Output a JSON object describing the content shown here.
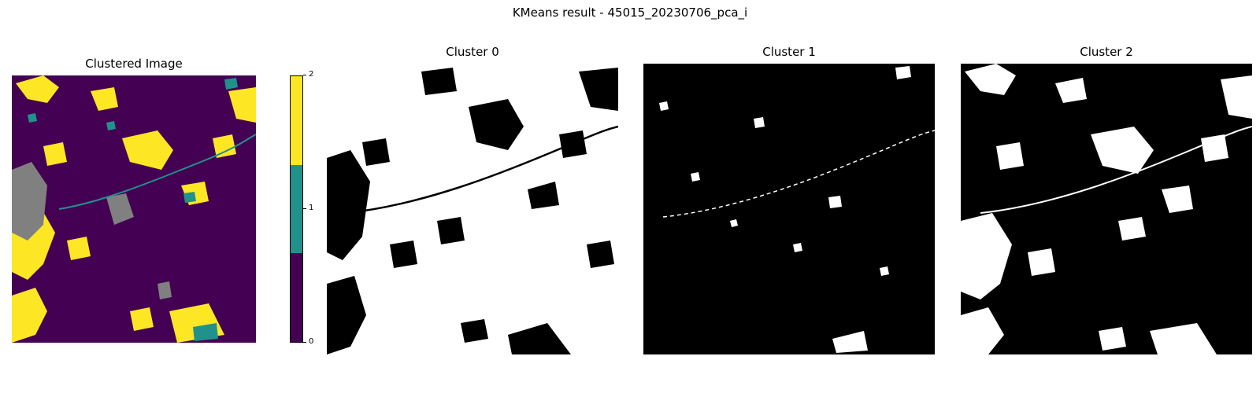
{
  "figure": {
    "suptitle": "KMeans result - 45015_20230706_pca_i"
  },
  "panels": [
    {
      "id": "clustered",
      "title": "Clustered Image"
    },
    {
      "id": "cluster0",
      "title": "Cluster 0"
    },
    {
      "id": "cluster1",
      "title": "Cluster 1"
    },
    {
      "id": "cluster2",
      "title": "Cluster 2"
    }
  ],
  "colorbar": {
    "ticks": [
      "0",
      "1",
      "2"
    ],
    "colors": [
      "#440154",
      "#21918c",
      "#fde725"
    ]
  },
  "palette": {
    "cluster0": "#440154",
    "cluster1": "#21918c",
    "cluster2": "#fde725",
    "nodata": "#808080",
    "mask_on": "#ffffff",
    "mask_off": "#000000"
  }
}
